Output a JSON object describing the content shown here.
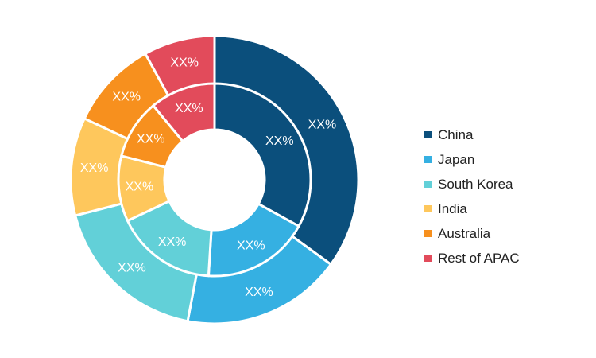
{
  "chart_data": {
    "type": "pie",
    "variant": "nested-donut",
    "categories": [
      "China",
      "Japan",
      "South Korea",
      "India",
      "Australia",
      "Rest of APAC"
    ],
    "colors": [
      "#0b4f7c",
      "#35b0e2",
      "#62d0d8",
      "#fec75c",
      "#f7901e",
      "#e24b5b"
    ],
    "series": [
      {
        "values": [
          35,
          18,
          18,
          11,
          10,
          8
        ],
        "labels": [
          "XX%",
          "XX%",
          "XX%",
          "XX%",
          "XX%",
          "XX%"
        ]
      },
      {
        "values": [
          33,
          18,
          17,
          11,
          10,
          11
        ],
        "labels": [
          "XX%",
          "XX%",
          "XX%",
          "XX%",
          "XX%",
          "XX%"
        ]
      }
    ],
    "legend": {
      "position": "right",
      "entries": [
        "China",
        "Japan",
        "South Korea",
        "India",
        "Australia",
        "Rest of APAC"
      ]
    }
  }
}
